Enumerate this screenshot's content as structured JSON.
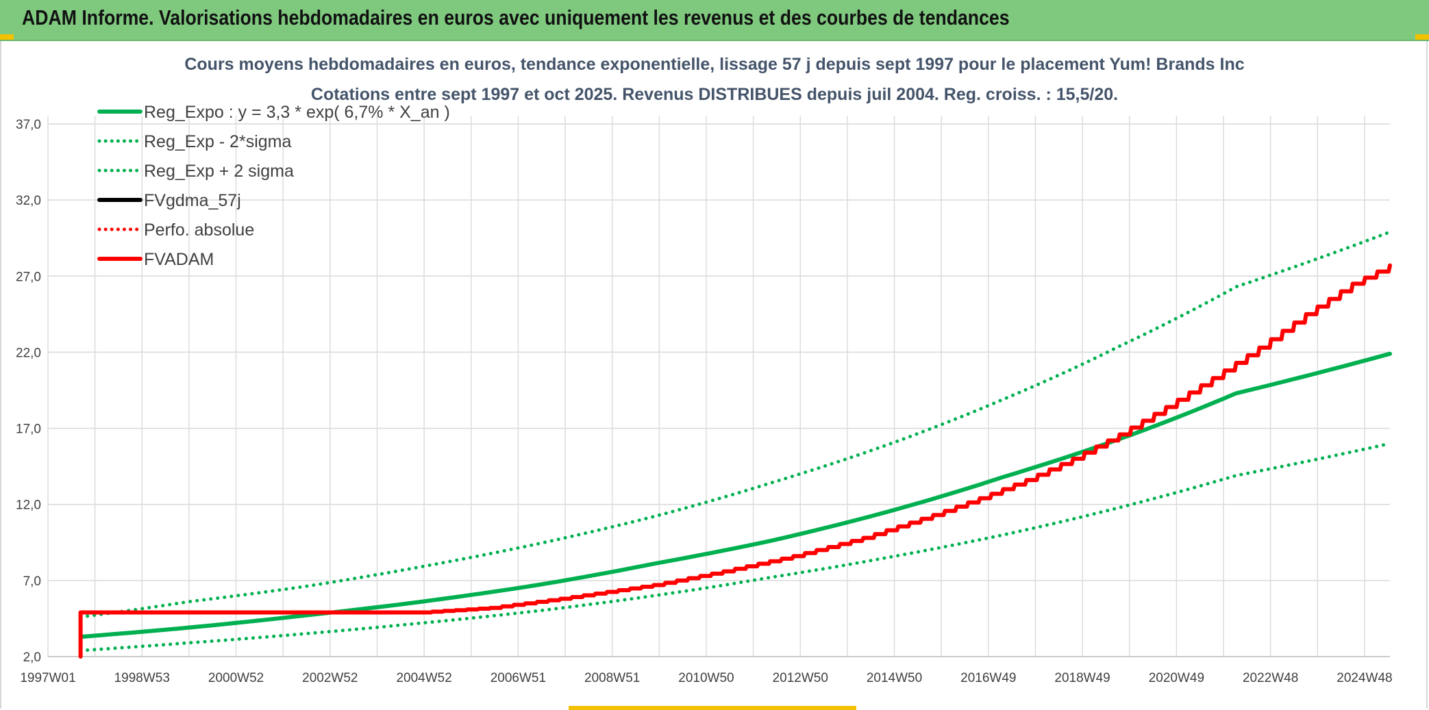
{
  "header": {
    "title": "ADAM Informe. Valorisations hebdomadaires en euros avec uniquement les revenus et des courbes de tendances"
  },
  "chart_data": {
    "type": "line",
    "title": "Cours moyens hebdomadaires en euros, tendance exponentielle, lissage 57 j depuis sept 1997 pour le placement Yum! Brands Inc",
    "subtitle": "Cotations entre sept 1997 et oct 2025. Revenus DISTRIBUES depuis juil 2004. Reg. croiss. : 15,5/20.",
    "xlabel": "",
    "ylabel": "",
    "x_tick_labels": [
      "1997W01",
      "1998W53",
      "2000W52",
      "2002W52",
      "2004W52",
      "2006W51",
      "2008W51",
      "2010W50",
      "2012W50",
      "2014W50",
      "2016W49",
      "2018W49",
      "2020W49",
      "2022W48",
      "2024W48"
    ],
    "x_range_years": [
      1997.0,
      2025.8
    ],
    "y_ticks": [
      "2,0",
      "7,0",
      "12,0",
      "17,0",
      "22,0",
      "27,0",
      "32,0",
      "37,0"
    ],
    "ylim": [
      2,
      37
    ],
    "grid": true,
    "legend_position": "top-left",
    "series": [
      {
        "name": "Reg_Expo : y = 3,3 * exp( 6,7% *  X_an )",
        "color": "#00b050",
        "style": "solid",
        "x": [
          1997.7,
          2000,
          2002.5,
          2005,
          2007.5,
          2010,
          2012.5,
          2015,
          2017.5,
          2020,
          2022.5,
          2025.8
        ],
        "values": [
          3.3,
          3.9,
          4.7,
          5.6,
          6.7,
          8.1,
          9.6,
          11.5,
          13.8,
          16.3,
          19.3,
          21.9
        ]
      },
      {
        "name": "Reg_Exp - 2*sigma",
        "color": "#00b050",
        "style": "dotted",
        "x": [
          1997.7,
          2000,
          2002.5,
          2005,
          2007.5,
          2010,
          2012.5,
          2015,
          2017.5,
          2020,
          2022.5,
          2025.8
        ],
        "values": [
          2.4,
          2.9,
          3.5,
          4.2,
          5.0,
          6.0,
          7.2,
          8.5,
          10.0,
          11.8,
          13.9,
          16.0
        ]
      },
      {
        "name": "Reg_Exp + 2 sigma",
        "color": "#00b050",
        "style": "dotted",
        "x": [
          1997.7,
          2000,
          2002.5,
          2005,
          2007.5,
          2010,
          2012.5,
          2015,
          2017.5,
          2020,
          2022.5,
          2025.8
        ],
        "values": [
          4.6,
          5.6,
          6.6,
          7.9,
          9.4,
          11.2,
          13.4,
          15.9,
          18.9,
          22.4,
          26.3,
          29.9
        ]
      },
      {
        "name": "FVgdma_57j",
        "color": "#000000",
        "style": "solid",
        "x": [],
        "values": []
      },
      {
        "name": "Perfo. absolue",
        "color": "#ff0000",
        "style": "dotted",
        "x": [],
        "values": []
      },
      {
        "name": "FVADAM",
        "color": "#ff0000",
        "style": "solid-steps",
        "x": [
          1997.7,
          1997.7,
          2000,
          2002.5,
          2005,
          2006.5,
          2008,
          2010,
          2011.5,
          2013,
          2014.5,
          2016,
          2017,
          2018,
          2019,
          2020,
          2021,
          2022,
          2023,
          2024,
          2025,
          2025.8
        ],
        "values": [
          2.0,
          4.9,
          4.9,
          4.9,
          4.9,
          5.2,
          5.8,
          6.7,
          7.6,
          8.6,
          9.8,
          11.3,
          12.4,
          13.6,
          15.0,
          16.6,
          18.4,
          20.3,
          22.3,
          24.5,
          26.5,
          27.7
        ]
      }
    ]
  }
}
